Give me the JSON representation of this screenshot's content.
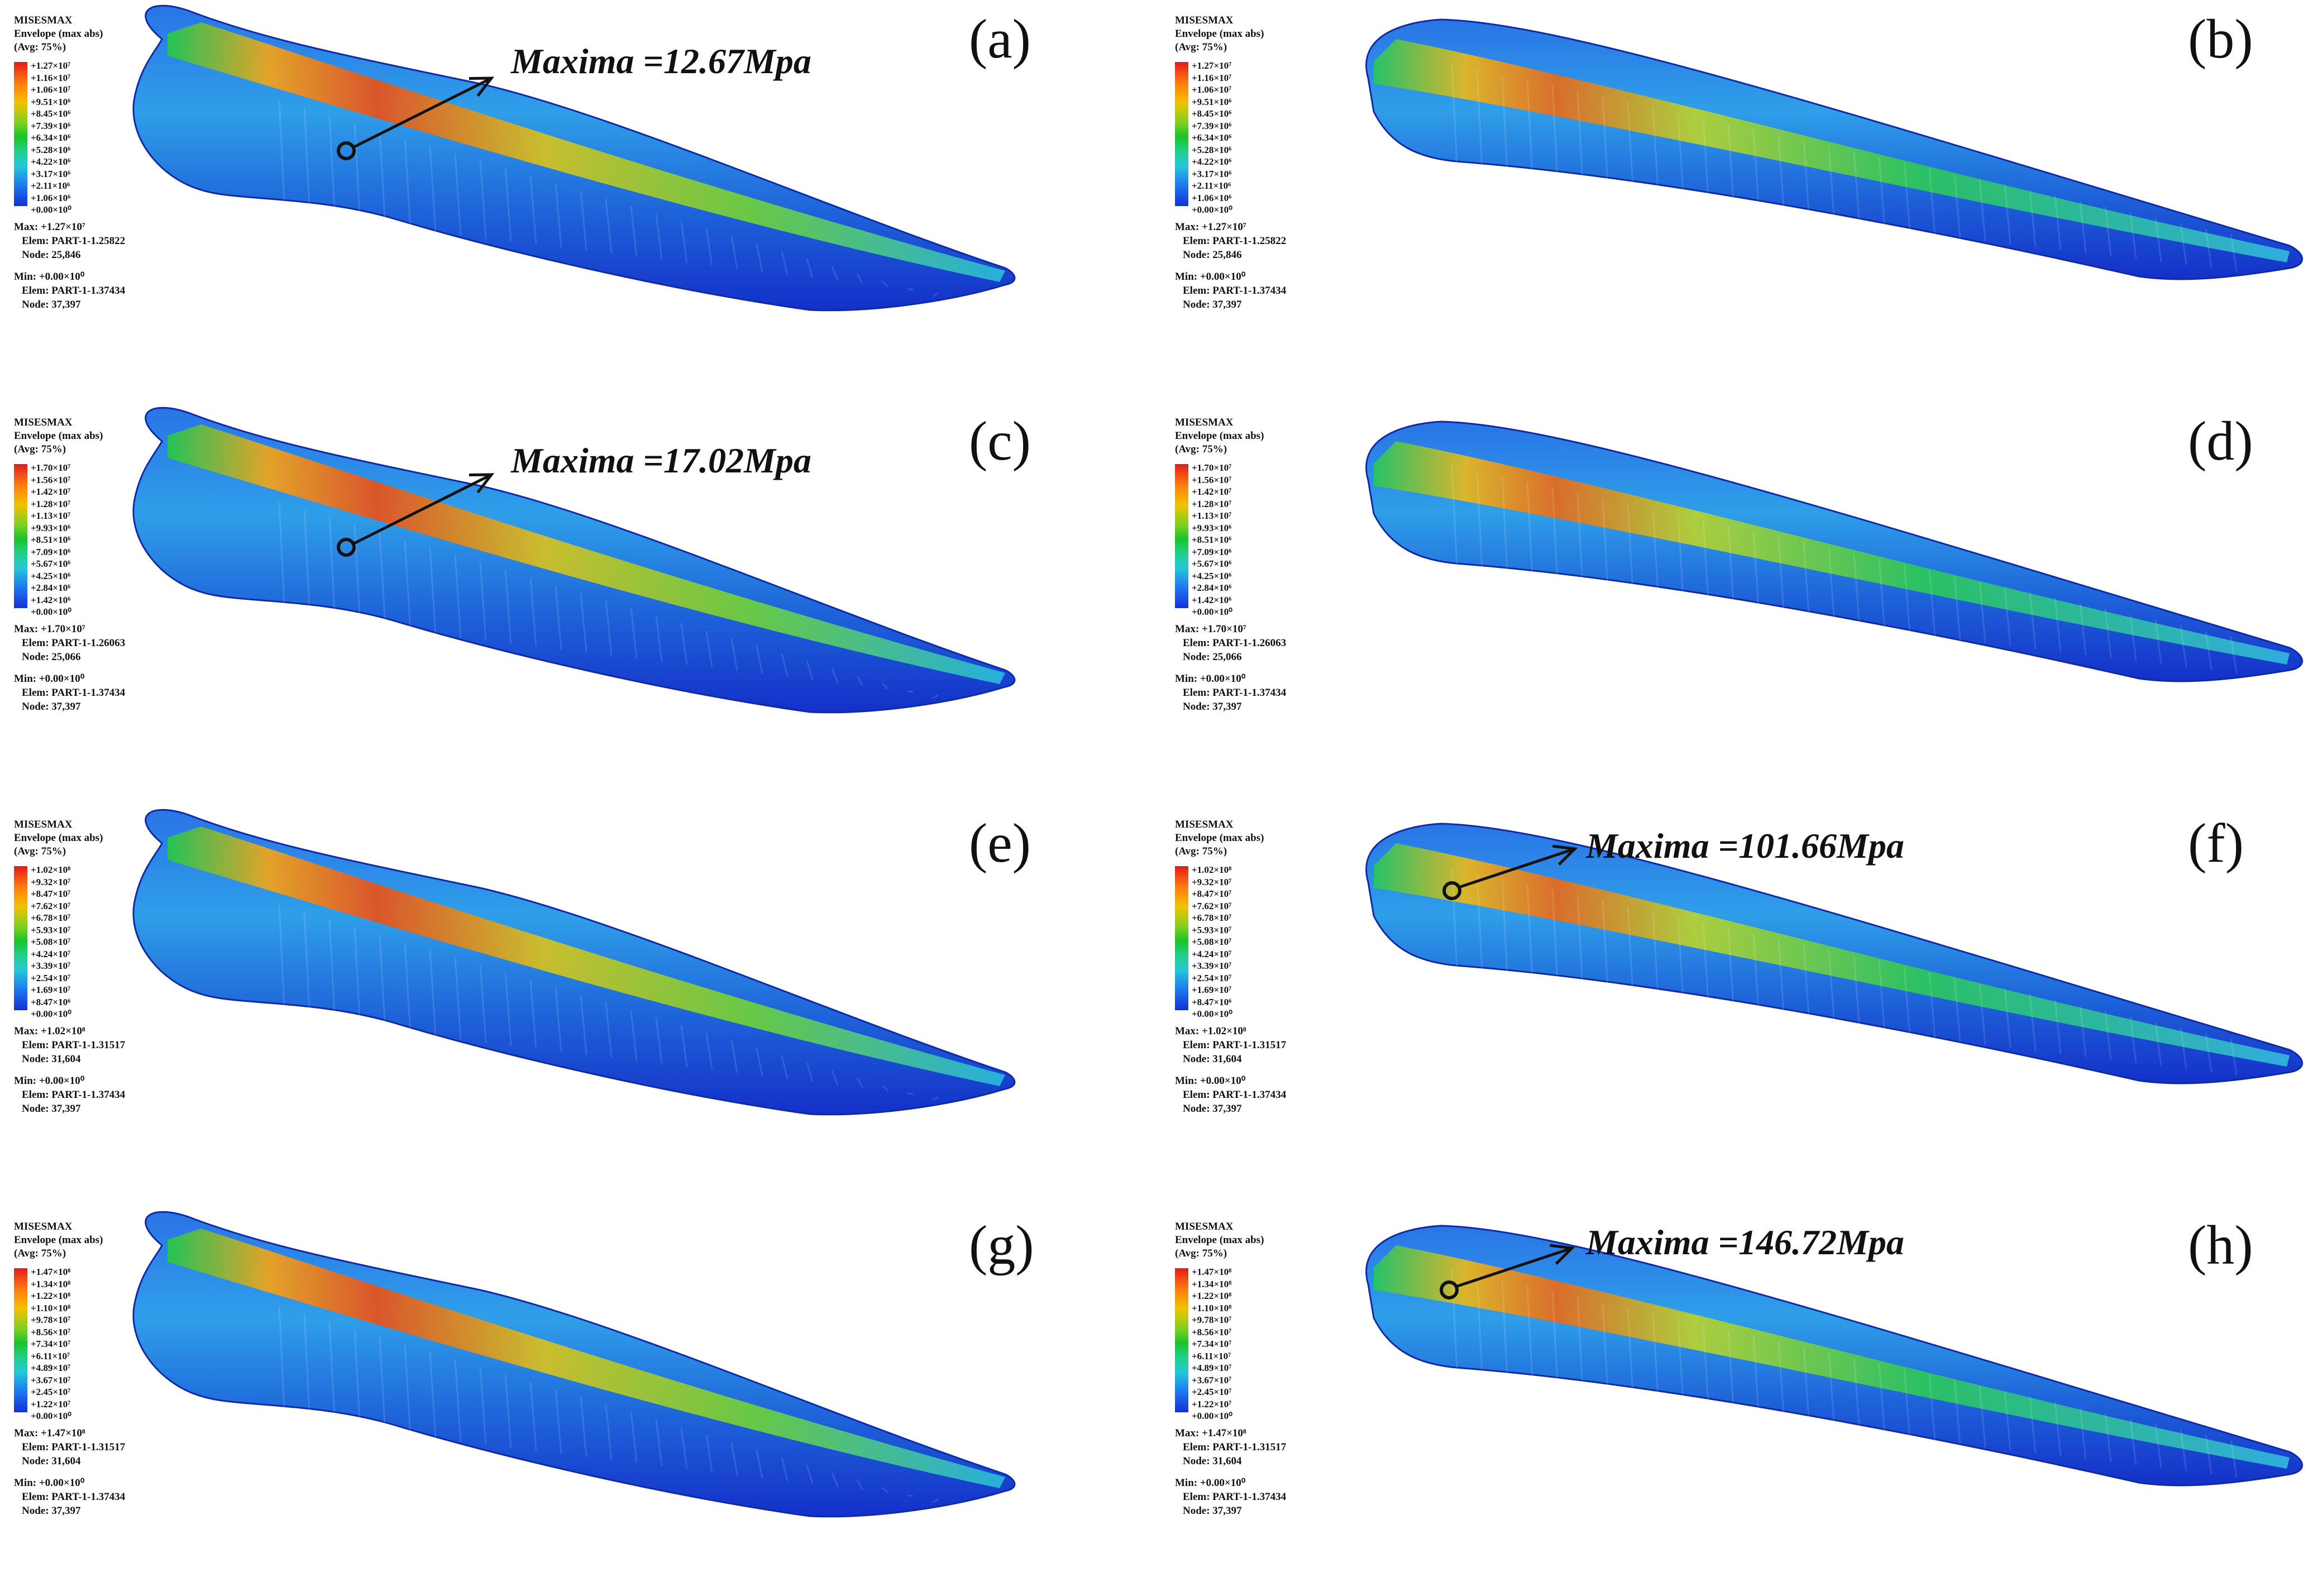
{
  "legend_header": [
    "MISESMAX",
    "Envelope (max abs)",
    "(Avg: 75%)"
  ],
  "colors": {
    "max": "#e41a1c",
    "blade_dark": "#1838c8",
    "spar_green": "#22c55e"
  },
  "panels": [
    {
      "label": "(a)",
      "variant": "left",
      "ticks": [
        "+1.27×10⁷",
        "+1.16×10⁷",
        "+1.06×10⁷",
        "+9.51×10⁶",
        "+8.45×10⁶",
        "+7.39×10⁶",
        "+6.34×10⁶",
        "+5.28×10⁶",
        "+4.22×10⁶",
        "+3.17×10⁶",
        "+2.11×10⁶",
        "+1.06×10⁶",
        "+0.00×10⁰"
      ],
      "max": "Max: +1.27×10⁷",
      "max_elem": "Elem: PART-1-1.25822",
      "max_node": "Node: 25,846",
      "min": "Min: +0.00×10⁰",
      "min_elem": "Elem: PART-1-1.37434",
      "min_node": "Node: 37,397",
      "annotation": "Maxima =12.67Mpa"
    },
    {
      "label": "(b)",
      "variant": "right",
      "ticks": [
        "+1.27×10⁷",
        "+1.16×10⁷",
        "+1.06×10⁷",
        "+9.51×10⁶",
        "+8.45×10⁶",
        "+7.39×10⁶",
        "+6.34×10⁶",
        "+5.28×10⁶",
        "+4.22×10⁶",
        "+3.17×10⁶",
        "+2.11×10⁶",
        "+1.06×10⁶",
        "+0.00×10⁰"
      ],
      "max": "Max: +1.27×10⁷",
      "max_elem": "Elem: PART-1-1.25822",
      "max_node": "Node: 25,846",
      "min": "Min: +0.00×10⁰",
      "min_elem": "Elem: PART-1-1.37434",
      "min_node": "Node: 37,397",
      "annotation": ""
    },
    {
      "label": "(c)",
      "variant": "left",
      "ticks": [
        "+1.70×10⁷",
        "+1.56×10⁷",
        "+1.42×10⁷",
        "+1.28×10⁷",
        "+1.13×10⁷",
        "+9.93×10⁶",
        "+8.51×10⁶",
        "+7.09×10⁶",
        "+5.67×10⁶",
        "+4.25×10⁶",
        "+2.84×10⁶",
        "+1.42×10⁶",
        "+0.00×10⁰"
      ],
      "max": "Max: +1.70×10⁷",
      "max_elem": "Elem: PART-1-1.26063",
      "max_node": "Node: 25,066",
      "min": "Min: +0.00×10⁰",
      "min_elem": "Elem: PART-1-1.37434",
      "min_node": "Node: 37,397",
      "annotation": "Maxima =17.02Mpa"
    },
    {
      "label": "(d)",
      "variant": "right",
      "ticks": [
        "+1.70×10⁷",
        "+1.56×10⁷",
        "+1.42×10⁷",
        "+1.28×10⁷",
        "+1.13×10⁷",
        "+9.93×10⁶",
        "+8.51×10⁶",
        "+7.09×10⁶",
        "+5.67×10⁶",
        "+4.25×10⁶",
        "+2.84×10⁶",
        "+1.42×10⁶",
        "+0.00×10⁰"
      ],
      "max": "Max: +1.70×10⁷",
      "max_elem": "Elem: PART-1-1.26063",
      "max_node": "Node: 25,066",
      "min": "Min: +0.00×10⁰",
      "min_elem": "Elem: PART-1-1.37434",
      "min_node": "Node: 37,397",
      "annotation": ""
    },
    {
      "label": "(e)",
      "variant": "left",
      "ticks": [
        "+1.02×10⁸",
        "+9.32×10⁷",
        "+8.47×10⁷",
        "+7.62×10⁷",
        "+6.78×10⁷",
        "+5.93×10⁷",
        "+5.08×10⁷",
        "+4.24×10⁷",
        "+3.39×10⁷",
        "+2.54×10⁷",
        "+1.69×10⁷",
        "+8.47×10⁶",
        "+0.00×10⁰"
      ],
      "max": "Max: +1.02×10⁸",
      "max_elem": "Elem: PART-1-1.31517",
      "max_node": "Node: 31,604",
      "min": "Min: +0.00×10⁰",
      "min_elem": "Elem: PART-1-1.37434",
      "min_node": "Node: 37,397",
      "annotation": ""
    },
    {
      "label": "(f)",
      "variant": "right",
      "ticks": [
        "+1.02×10⁸",
        "+9.32×10⁷",
        "+8.47×10⁷",
        "+7.62×10⁷",
        "+6.78×10⁷",
        "+5.93×10⁷",
        "+5.08×10⁷",
        "+4.24×10⁷",
        "+3.39×10⁷",
        "+2.54×10⁷",
        "+1.69×10⁷",
        "+8.47×10⁶",
        "+0.00×10⁰"
      ],
      "max": "Max: +1.02×10⁸",
      "max_elem": "Elem: PART-1-1.31517",
      "max_node": "Node: 31,604",
      "min": "Min: +0.00×10⁰",
      "min_elem": "Elem: PART-1-1.37434",
      "min_node": "Node: 37,397",
      "annotation": "Maxima =101.66Mpa"
    },
    {
      "label": "(g)",
      "variant": "left",
      "ticks": [
        "+1.47×10⁸",
        "+1.34×10⁸",
        "+1.22×10⁸",
        "+1.10×10⁸",
        "+9.78×10⁷",
        "+8.56×10⁷",
        "+7.34×10⁷",
        "+6.11×10⁷",
        "+4.89×10⁷",
        "+3.67×10⁷",
        "+2.45×10⁷",
        "+1.22×10⁷",
        "+0.00×10⁰"
      ],
      "max": "Max: +1.47×10⁸",
      "max_elem": "Elem: PART-1-1.31517",
      "max_node": "Node: 31,604",
      "min": "Min: +0.00×10⁰",
      "min_elem": "Elem: PART-1-1.37434",
      "min_node": "Node: 37,397",
      "annotation": ""
    },
    {
      "label": "(h)",
      "variant": "right",
      "ticks": [
        "+1.47×10⁸",
        "+1.34×10⁸",
        "+1.22×10⁸",
        "+1.10×10⁸",
        "+9.78×10⁷",
        "+8.56×10⁷",
        "+7.34×10⁷",
        "+6.11×10⁷",
        "+4.89×10⁷",
        "+3.67×10⁷",
        "+2.45×10⁷",
        "+1.22×10⁷",
        "+0.00×10⁰"
      ],
      "max": "Max: +1.47×10⁸",
      "max_elem": "Elem: PART-1-1.31517",
      "max_node": "Node: 31,604",
      "min": "Min: +0.00×10⁰",
      "min_elem": "Elem: PART-1-1.37434",
      "min_node": "Node: 37,397",
      "annotation": "Maxima =146.72Mpa"
    }
  ]
}
